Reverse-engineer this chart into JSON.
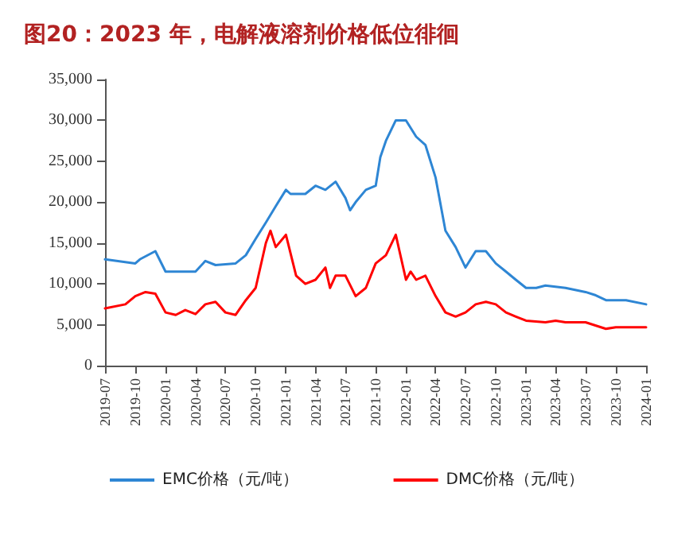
{
  "chart_data": {
    "type": "line",
    "title": "图20：2023 年，电解液溶剂价格低位徘徊",
    "xlim": [
      "2019-07",
      "2024-01"
    ],
    "xticks": [
      {
        "value": "2019-07",
        "label": "2019-07"
      },
      {
        "value": "2019-10",
        "label": "2019-10"
      },
      {
        "value": "2020-01",
        "label": "2020-01"
      },
      {
        "value": "2020-04",
        "label": "2020-04"
      },
      {
        "value": "2020-07",
        "label": "2020-07"
      },
      {
        "value": "2020-10",
        "label": "2020-10"
      },
      {
        "value": "2021-01",
        "label": "2021-01"
      },
      {
        "value": "2021-04",
        "label": "2021-04"
      },
      {
        "value": "2021-07",
        "label": "2021-07"
      },
      {
        "value": "2021-10",
        "label": "2021-10"
      },
      {
        "value": "2022-01",
        "label": "2022-01"
      },
      {
        "value": "2022-04",
        "label": "2022-04"
      },
      {
        "value": "2022-07",
        "label": "2022-07"
      },
      {
        "value": "2022-10",
        "label": "2022-10"
      },
      {
        "value": "2023-01",
        "label": "2023-01"
      },
      {
        "value": "2023-04",
        "label": "2023-04"
      },
      {
        "value": "2023-07",
        "label": "2023-07"
      },
      {
        "value": "2023-10",
        "label": "2023-10"
      },
      {
        "value": "2024-01",
        "label": "2024-01"
      }
    ],
    "ylim": [
      0,
      35000
    ],
    "yticks": [
      0,
      {
        "value": 5000,
        "label": "5,000"
      },
      {
        "value": 10000,
        "label": "10,000"
      },
      {
        "value": 15000,
        "label": "15,000"
      },
      {
        "value": 20000,
        "label": "20,000"
      },
      {
        "value": 25000,
        "label": "25,000"
      },
      {
        "value": 30000,
        "label": "30,000"
      },
      {
        "value": 35000,
        "label": "35,000"
      }
    ],
    "grid": false,
    "legend": "bottom",
    "marker": "none",
    "line_style": "solid",
    "series": [
      {
        "name": "EMC价格（元/吨）",
        "color": "#2e86d4",
        "x": [
          "2019-07",
          "2019-10",
          "2019-10-15",
          "2019-12",
          "2020-01",
          "2020-04",
          "2020-05",
          "2020-06",
          "2020-08",
          "2020-09",
          "2020-10",
          "2020-11",
          "2020-12",
          "2021-01",
          "2021-01-15",
          "2021-03",
          "2021-04",
          "2021-05",
          "2021-06",
          "2021-07",
          "2021-07-15",
          "2021-08",
          "2021-09",
          "2021-10",
          "2021-10-15",
          "2021-11",
          "2021-12",
          "2022-01",
          "2022-02",
          "2022-03",
          "2022-04",
          "2022-05",
          "2022-06",
          "2022-07",
          "2022-08",
          "2022-09",
          "2022-10",
          "2022-11",
          "2022-12",
          "2023-01",
          "2023-02",
          "2023-03",
          "2023-05",
          "2023-07",
          "2023-08",
          "2023-09",
          "2023-11",
          "2024-01"
        ],
        "values": [
          13000,
          12500,
          13000,
          14000,
          11500,
          11500,
          12800,
          12300,
          12500,
          13500,
          15500,
          17500,
          19500,
          21500,
          21000,
          21000,
          22000,
          21500,
          22500,
          20500,
          19000,
          20000,
          21500,
          22000,
          25500,
          27500,
          30000,
          30000,
          28000,
          27000,
          23000,
          16500,
          14500,
          12000,
          14000,
          14000,
          12500,
          11500,
          10500,
          9500,
          9500,
          9800,
          9500,
          9000,
          8600,
          8000,
          8000,
          7500
        ]
      },
      {
        "name": "DMC价格（元/吨）",
        "color": "#ff0000",
        "x": [
          "2019-07",
          "2019-09",
          "2019-10",
          "2019-11",
          "2019-12",
          "2020-01",
          "2020-02",
          "2020-03",
          "2020-04",
          "2020-05",
          "2020-06",
          "2020-07",
          "2020-08",
          "2020-09",
          "2020-10",
          "2020-11",
          "2020-11-15",
          "2020-12",
          "2021-01",
          "2021-02",
          "2021-03",
          "2021-04",
          "2021-05",
          "2021-05-15",
          "2021-06",
          "2021-07",
          "2021-08",
          "2021-09",
          "2021-10",
          "2021-11",
          "2021-12",
          "2022-01",
          "2022-01-15",
          "2022-02",
          "2022-03",
          "2022-04",
          "2022-05",
          "2022-06",
          "2022-07",
          "2022-08",
          "2022-09",
          "2022-10",
          "2022-11",
          "2022-12",
          "2023-01",
          "2023-03",
          "2023-04",
          "2023-05",
          "2023-07",
          "2023-09",
          "2023-10",
          "2024-01"
        ],
        "values": [
          7000,
          7500,
          8500,
          9000,
          8800,
          6500,
          6200,
          6800,
          6300,
          7500,
          7800,
          6500,
          6200,
          8000,
          9500,
          15000,
          16500,
          14500,
          16000,
          11000,
          10000,
          10500,
          12000,
          9500,
          11000,
          11000,
          8500,
          9500,
          12500,
          13500,
          16000,
          10500,
          11500,
          10500,
          11000,
          8500,
          6500,
          6000,
          6500,
          7500,
          7800,
          7500,
          6500,
          6000,
          5500,
          5300,
          5500,
          5300,
          5300,
          4500,
          4700,
          4700
        ]
      }
    ]
  }
}
